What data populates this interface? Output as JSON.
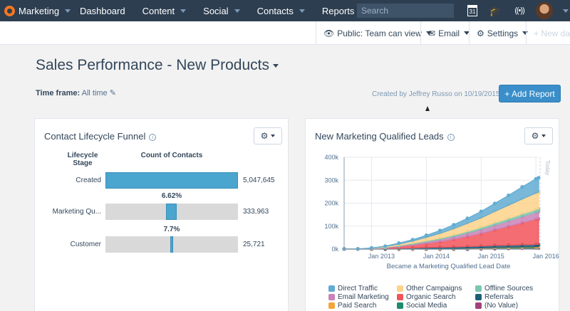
{
  "topnav": {
    "brand": "Marketing",
    "items": [
      "Dashboard",
      "Content",
      "Social",
      "Contacts",
      "Reports"
    ],
    "search_placeholder": "Search",
    "calendar_day": "31"
  },
  "subbar": {
    "visibility": "Public: Team can view",
    "email": "Email",
    "settings": "Settings",
    "new_dash": "+ New das"
  },
  "page": {
    "title": "Sales Performance - New Products",
    "timeframe_label": "Time frame:",
    "timeframe_value": "All time",
    "created_by": "Created by Jeffrey Russo on 10/19/2015",
    "add_report": "+ Add Report"
  },
  "funnel": {
    "title": "Contact Lifecycle Funnel",
    "col_stage": "Lifecycle Stage",
    "col_count": "Count of Contacts",
    "rows": [
      {
        "label": "Created",
        "value": "5,047,645",
        "fraction": 1.0
      },
      {
        "label": "Marketing Qu...",
        "value": "333,963",
        "fraction": 0.0662,
        "conversion": "6.62%"
      },
      {
        "label": "Customer",
        "value": "25,721",
        "fraction": 0.0051,
        "conversion": "7.7%"
      }
    ]
  },
  "leads_chart": {
    "title": "New Marketing Qualified Leads",
    "today_label": "Today"
  },
  "chart_data": {
    "type": "area",
    "title": "New Marketing Qualified Leads",
    "xlabel": "Became a Marketing Qualified Lead Date",
    "ylabel": "",
    "x_ticks": [
      "Jan 2013",
      "Jan 2014",
      "Jan 2015",
      "Jan 2016"
    ],
    "y_ticks": [
      "0k",
      "100k",
      "200k",
      "300k",
      "400k"
    ],
    "ylim": [
      0,
      400000
    ],
    "stacked": true,
    "x": [
      2012.5,
      2012.75,
      2013.0,
      2013.25,
      2013.5,
      2013.75,
      2014.0,
      2014.25,
      2014.5,
      2014.75,
      2015.0,
      2015.25,
      2015.5,
      2015.75,
      2016.0,
      2016.05
    ],
    "series": [
      {
        "name": "(No Value)",
        "color": "#a3417a",
        "values": [
          0,
          0,
          0,
          0,
          0,
          0,
          0,
          0,
          0,
          0,
          1000,
          2000,
          3000,
          4000,
          5000,
          5000
        ]
      },
      {
        "name": "Social Media",
        "color": "#1f8a6e",
        "values": [
          1000,
          1000,
          1000,
          1000,
          1000,
          1000,
          2000,
          2000,
          2000,
          2000,
          2000,
          3000,
          3000,
          3000,
          3000,
          3000
        ]
      },
      {
        "name": "Paid Search",
        "color": "#f2a73b",
        "values": [
          0,
          0,
          0,
          0,
          1000,
          1000,
          1000,
          1000,
          1000,
          2000,
          2000,
          2000,
          2000,
          2000,
          2000,
          2000
        ]
      },
      {
        "name": "Referrals",
        "color": "#1b5f7a",
        "values": [
          0,
          0,
          0,
          1000,
          2000,
          3000,
          4000,
          5000,
          6000,
          7000,
          8000,
          9000,
          9000,
          10000,
          10000,
          10000
        ]
      },
      {
        "name": "Organic Search",
        "color": "#f2545b",
        "values": [
          0,
          0,
          1000,
          3000,
          7000,
          12000,
          18000,
          25000,
          34000,
          44000,
          55000,
          68000,
          82000,
          96000,
          110000,
          112000
        ]
      },
      {
        "name": "Email Marketing",
        "color": "#c983b8",
        "values": [
          0,
          0,
          1000,
          2000,
          3000,
          5000,
          7000,
          9000,
          12000,
          15000,
          18000,
          21000,
          24000,
          27000,
          30000,
          31000
        ]
      },
      {
        "name": "Offline Sources",
        "color": "#7bc7b0",
        "values": [
          0,
          0,
          0,
          1000,
          2000,
          3000,
          4000,
          5000,
          6000,
          7000,
          8000,
          9000,
          10000,
          11000,
          12000,
          12000
        ]
      },
      {
        "name": "Other Campaigns",
        "color": "#fdd28a",
        "values": [
          0,
          0,
          1000,
          3000,
          6000,
          10000,
          15000,
          21000,
          28000,
          35000,
          42000,
          50000,
          58000,
          65000,
          72000,
          73000
        ]
      },
      {
        "name": "Direct Traffic",
        "color": "#62acd1",
        "values": [
          0,
          0,
          1000,
          2000,
          4000,
          6000,
          9000,
          13000,
          17000,
          22000,
          28000,
          35000,
          43000,
          53000,
          62000,
          63000
        ]
      }
    ],
    "legend": [
      [
        "Direct Traffic",
        "Other Campaigns",
        "Offline Sources"
      ],
      [
        "Email Marketing",
        "Organic Search",
        "Referrals"
      ],
      [
        "Paid Search",
        "Social Media",
        "(No Value)"
      ]
    ],
    "legend_placement": "bottom",
    "grid": true
  }
}
